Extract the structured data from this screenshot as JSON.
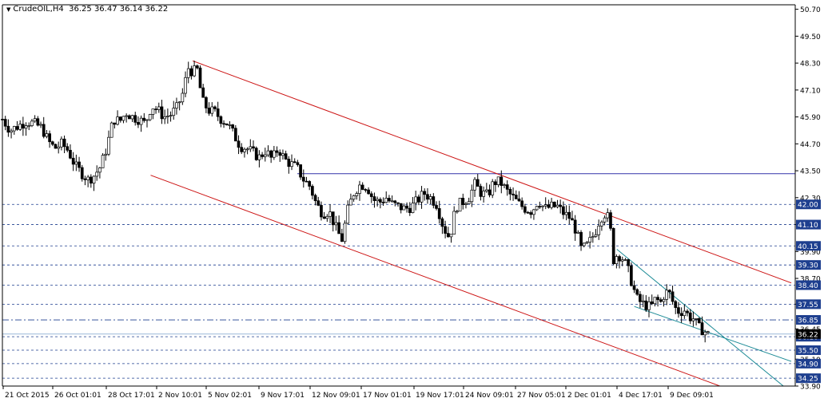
{
  "header": {
    "symbol": "CrudeOIL,H4",
    "ohlc": "36.25 36.47 36.14 36.22",
    "dropdown_icon": "triangle-down-icon"
  },
  "colors": {
    "background": "#ffffff",
    "candle": "#000000",
    "channel": "#cc1111",
    "wedge": "#1a8a95",
    "level_dashed": "#1e3f8f",
    "resistance": "#3333aa",
    "price_tag_bg": "#1e3f8f",
    "price_tag_text": "#ffffff",
    "bid_line": "#9ab8d8"
  },
  "chart_data": {
    "type": "candlestick",
    "title": "CrudeOIL,H4",
    "ylim": [
      33.9,
      50.9
    ],
    "x_tick_labels": [
      "21 Oct 2015",
      "26 Oct 01:01",
      "28 Oct 17:01",
      "2 Nov 10:01",
      "5 Nov 02:01",
      "9 Nov 17:01",
      "12 Nov 09:01",
      "17 Nov 01:01",
      "19 Nov 17:01",
      "24 Nov 09:01",
      "27 Nov 05:01",
      "2 Dec 01:01",
      "4 Dec 17:01",
      "9 Dec 09:01"
    ],
    "y_tick_labels": [
      50.7,
      49.5,
      48.3,
      47.1,
      45.9,
      44.7,
      43.5,
      42.3,
      41.1,
      39.9,
      38.7,
      37.55,
      36.45,
      35.1,
      33.9
    ],
    "level_lines": [
      42.0,
      41.1,
      40.15,
      39.3,
      38.4,
      37.55,
      36.85,
      36.1,
      35.5,
      34.9,
      34.25
    ],
    "price_tags": [
      "42.00",
      "41.10",
      "40.15",
      "39.30",
      "38.40",
      "37.55",
      "36.85",
      "36.10",
      "35.50",
      "34.90",
      "34.25"
    ],
    "horizontal_resistance": 43.37,
    "current_price": 36.22,
    "channel_upper": [
      {
        "x": 0.24,
        "y": 48.4
      },
      {
        "x": 0.995,
        "y": 38.5
      }
    ],
    "channel_lower": [
      {
        "x": 0.187,
        "y": 43.3
      },
      {
        "x": 0.905,
        "y": 33.9
      }
    ],
    "wedge_upper": [
      {
        "x": 0.775,
        "y": 40.0
      },
      {
        "x": 0.985,
        "y": 33.9
      }
    ],
    "wedge_lower": [
      {
        "x": 0.797,
        "y": 37.45
      },
      {
        "x": 0.995,
        "y": 35.0
      }
    ],
    "close_path": [
      [
        0.0,
        45.8
      ],
      [
        0.01,
        45.3
      ],
      [
        0.02,
        45.5
      ],
      [
        0.03,
        45.7
      ],
      [
        0.04,
        45.6
      ],
      [
        0.05,
        45.4
      ],
      [
        0.058,
        44.8
      ],
      [
        0.066,
        44.5
      ],
      [
        0.075,
        44.7
      ],
      [
        0.083,
        44.4
      ],
      [
        0.092,
        43.7
      ],
      [
        0.1,
        43.4
      ],
      [
        0.108,
        43.1
      ],
      [
        0.116,
        43.3
      ],
      [
        0.124,
        43.7
      ],
      [
        0.132,
        44.6
      ],
      [
        0.14,
        45.8
      ],
      [
        0.148,
        45.7
      ],
      [
        0.156,
        46.1
      ],
      [
        0.164,
        45.9
      ],
      [
        0.172,
        45.8
      ],
      [
        0.18,
        45.6
      ],
      [
        0.188,
        46.4
      ],
      [
        0.196,
        46.2
      ],
      [
        0.204,
        45.9
      ],
      [
        0.212,
        46.0
      ],
      [
        0.22,
        46.3
      ],
      [
        0.228,
        47.0
      ],
      [
        0.234,
        48.1
      ],
      [
        0.24,
        47.9
      ],
      [
        0.246,
        48.0
      ],
      [
        0.252,
        46.6
      ],
      [
        0.26,
        46.2
      ],
      [
        0.268,
        46.1
      ],
      [
        0.276,
        45.8
      ],
      [
        0.284,
        45.6
      ],
      [
        0.292,
        45.1
      ],
      [
        0.3,
        44.6
      ],
      [
        0.308,
        44.5
      ],
      [
        0.316,
        44.3
      ],
      [
        0.324,
        44.1
      ],
      [
        0.332,
        44.4
      ],
      [
        0.34,
        44.0
      ],
      [
        0.348,
        44.5
      ],
      [
        0.356,
        44.0
      ],
      [
        0.364,
        43.8
      ],
      [
        0.372,
        43.6
      ],
      [
        0.38,
        43.1
      ],
      [
        0.388,
        42.8
      ],
      [
        0.396,
        42.0
      ],
      [
        0.404,
        41.6
      ],
      [
        0.412,
        41.7
      ],
      [
        0.42,
        41.0
      ],
      [
        0.428,
        40.4
      ],
      [
        0.436,
        41.8
      ],
      [
        0.444,
        42.6
      ],
      [
        0.452,
        42.9
      ],
      [
        0.46,
        42.8
      ],
      [
        0.468,
        42.2
      ],
      [
        0.476,
        42.1
      ],
      [
        0.484,
        42.3
      ],
      [
        0.492,
        42.0
      ],
      [
        0.5,
        41.9
      ],
      [
        0.508,
        41.8
      ],
      [
        0.516,
        41.9
      ],
      [
        0.524,
        42.2
      ],
      [
        0.532,
        42.5
      ],
      [
        0.54,
        42.3
      ],
      [
        0.548,
        42.0
      ],
      [
        0.556,
        41.0
      ],
      [
        0.564,
        40.5
      ],
      [
        0.572,
        41.9
      ],
      [
        0.58,
        42.1
      ],
      [
        0.588,
        42.3
      ],
      [
        0.596,
        42.9
      ],
      [
        0.604,
        42.5
      ],
      [
        0.612,
        42.4
      ],
      [
        0.62,
        43.0
      ],
      [
        0.628,
        43.0
      ],
      [
        0.636,
        42.6
      ],
      [
        0.644,
        42.3
      ],
      [
        0.652,
        42.0
      ],
      [
        0.66,
        41.8
      ],
      [
        0.668,
        41.7
      ],
      [
        0.676,
        42.2
      ],
      [
        0.684,
        41.8
      ],
      [
        0.692,
        41.9
      ],
      [
        0.7,
        41.9
      ],
      [
        0.708,
        41.6
      ],
      [
        0.716,
        41.4
      ],
      [
        0.724,
        40.8
      ],
      [
        0.73,
        40.0
      ],
      [
        0.736,
        40.1
      ],
      [
        0.742,
        40.4
      ],
      [
        0.748,
        40.8
      ],
      [
        0.754,
        41.4
      ],
      [
        0.76,
        41.6
      ],
      [
        0.766,
        41.3
      ],
      [
        0.77,
        39.5
      ],
      [
        0.776,
        39.8
      ],
      [
        0.782,
        39.6
      ],
      [
        0.788,
        39.2
      ],
      [
        0.794,
        38.5
      ],
      [
        0.8,
        37.8
      ],
      [
        0.806,
        37.6
      ],
      [
        0.812,
        37.5
      ],
      [
        0.818,
        37.4
      ],
      [
        0.824,
        37.8
      ],
      [
        0.83,
        37.6
      ],
      [
        0.836,
        38.1
      ],
      [
        0.842,
        38.0
      ],
      [
        0.848,
        37.4
      ],
      [
        0.854,
        37.2
      ],
      [
        0.86,
        37.3
      ],
      [
        0.866,
        37.0
      ],
      [
        0.872,
        36.9
      ],
      [
        0.878,
        36.5
      ],
      [
        0.884,
        36.4
      ],
      [
        0.89,
        36.2
      ]
    ]
  }
}
